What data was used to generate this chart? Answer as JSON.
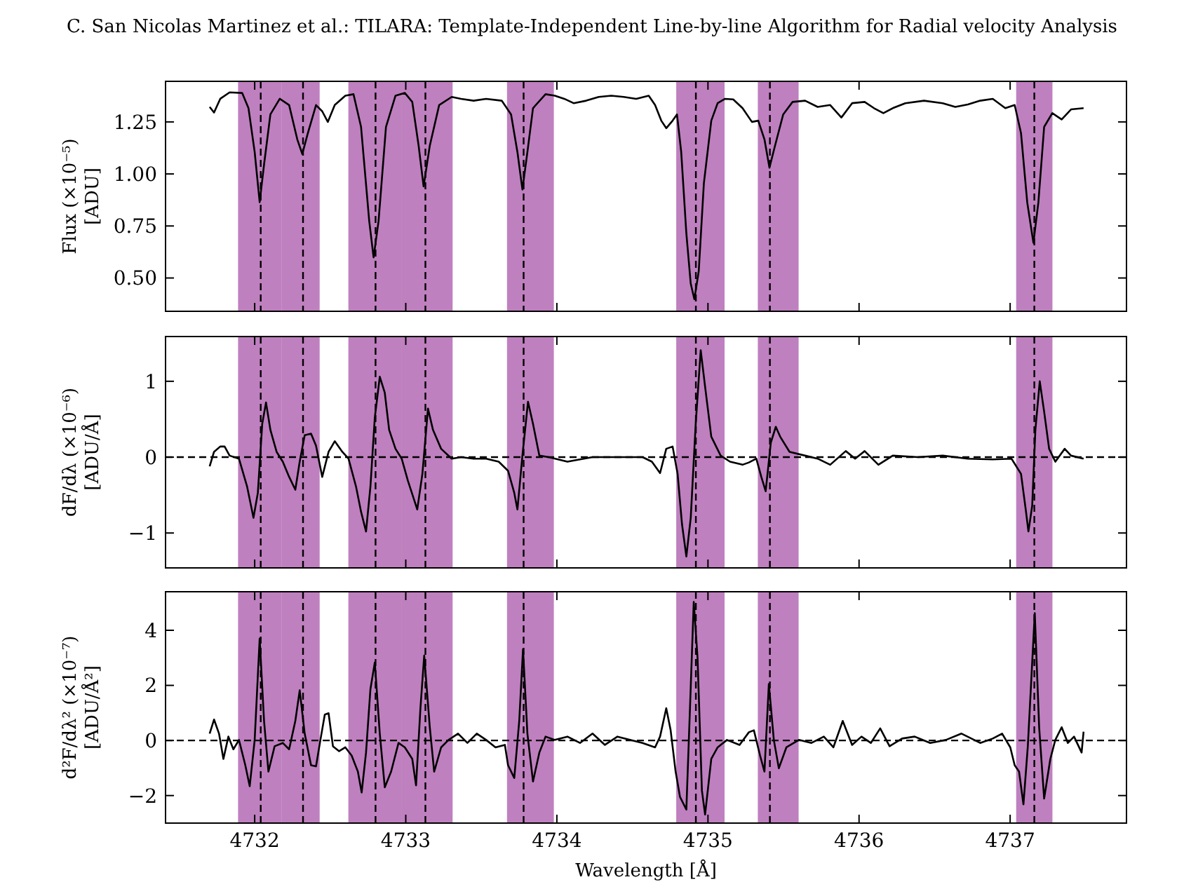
{
  "chart_data": [
    {
      "type": "line",
      "title": "C. San Nicolas Martinez et al.: TILARA: Template-Independent Line-by-line Algorithm for Radial velocity Analysis",
      "ylabel": "Flux (×10⁻⁵)\n[ADU]",
      "xlim": [
        4731.41,
        4737.77
      ],
      "ylim": [
        0.34,
        1.445
      ],
      "xticks": [
        4732,
        4733,
        4734,
        4735,
        4736,
        4737
      ],
      "yticks": [
        {
          "value": 0.5,
          "label": "0.50"
        },
        {
          "value": 0.75,
          "label": "0.75"
        },
        {
          "value": 1.0,
          "label": "1.00"
        },
        {
          "value": 1.25,
          "label": "1.25"
        }
      ],
      "tick_labels": "y",
      "grid": false,
      "series": [
        {
          "color": "#000000",
          "x": [
            4731.702,
            4731.731,
            4731.772,
            4731.834,
            4731.917,
            4731.959,
            4732.0,
            4732.033,
            4732.062,
            4732.104,
            4732.166,
            4732.228,
            4732.282,
            4732.315,
            4732.352,
            4732.406,
            4732.447,
            4732.484,
            4732.53,
            4732.6,
            4732.654,
            4732.704,
            4732.758,
            4732.787,
            4732.82,
            4732.869,
            4732.932,
            4732.994,
            4733.043,
            4733.085,
            4733.118,
            4733.159,
            4733.221,
            4733.304,
            4733.366,
            4733.449,
            4733.532,
            4733.635,
            4733.697,
            4733.739,
            4733.772,
            4733.805,
            4733.842,
            4733.925,
            4733.987,
            4734.049,
            4734.111,
            4734.194,
            4734.277,
            4734.36,
            4734.443,
            4734.525,
            4734.608,
            4734.65,
            4734.691,
            4734.724,
            4734.766,
            4734.795,
            4734.823,
            4734.857,
            4734.886,
            4734.91,
            4734.939,
            4734.973,
            4735.022,
            4735.064,
            4735.113,
            4735.167,
            4735.229,
            4735.291,
            4735.333,
            4735.374,
            4735.407,
            4735.444,
            4735.498,
            4735.56,
            4735.643,
            4735.726,
            4735.809,
            4735.883,
            4735.954,
            4736.037,
            4736.099,
            4736.161,
            4736.223,
            4736.306,
            4736.43,
            4736.554,
            4736.637,
            4736.72,
            4736.802,
            4736.885,
            4736.968,
            4737.03,
            4737.072,
            4737.113,
            4737.154,
            4737.187,
            4737.225,
            4737.279,
            4737.341,
            4737.403,
            4737.486
          ],
          "values": [
            1.322,
            1.295,
            1.361,
            1.392,
            1.389,
            1.316,
            1.105,
            0.864,
            1.045,
            1.286,
            1.361,
            1.331,
            1.166,
            1.096,
            1.196,
            1.331,
            1.301,
            1.25,
            1.331,
            1.376,
            1.383,
            1.226,
            0.774,
            0.599,
            0.774,
            1.226,
            1.376,
            1.389,
            1.346,
            1.136,
            0.94,
            1.136,
            1.331,
            1.37,
            1.361,
            1.352,
            1.361,
            1.352,
            1.286,
            1.105,
            0.925,
            1.105,
            1.316,
            1.383,
            1.376,
            1.361,
            1.34,
            1.352,
            1.37,
            1.376,
            1.37,
            1.361,
            1.376,
            1.331,
            1.256,
            1.22,
            1.256,
            1.286,
            1.105,
            0.714,
            0.473,
            0.398,
            0.533,
            0.955,
            1.256,
            1.34,
            1.361,
            1.358,
            1.316,
            1.25,
            1.256,
            1.166,
            1.03,
            1.136,
            1.286,
            1.346,
            1.352,
            1.322,
            1.331,
            1.271,
            1.34,
            1.346,
            1.316,
            1.292,
            1.316,
            1.34,
            1.352,
            1.34,
            1.322,
            1.334,
            1.352,
            1.361,
            1.316,
            1.331,
            1.196,
            0.864,
            0.669,
            0.864,
            1.226,
            1.292,
            1.262,
            1.31,
            1.316
          ]
        }
      ],
      "ref_lines": [
        {
          "axis": "x",
          "value": 4732.04,
          "color": "#000000",
          "line_style": "dashed"
        },
        {
          "axis": "x",
          "value": 4732.32,
          "color": "#000000",
          "line_style": "dashed"
        },
        {
          "axis": "x",
          "value": 4732.8,
          "color": "#000000",
          "line_style": "dashed"
        },
        {
          "axis": "x",
          "value": 4733.13,
          "color": "#000000",
          "line_style": "dashed"
        },
        {
          "axis": "x",
          "value": 4733.78,
          "color": "#000000",
          "line_style": "dashed"
        },
        {
          "axis": "x",
          "value": 4734.92,
          "color": "#000000",
          "line_style": "dashed"
        },
        {
          "axis": "x",
          "value": 4735.41,
          "color": "#000000",
          "line_style": "dashed"
        },
        {
          "axis": "x",
          "value": 4737.16,
          "color": "#000000",
          "line_style": "dashed"
        }
      ],
      "bands": [
        {
          "axis": "x",
          "from": 4731.89,
          "to": 4732.18,
          "color": "#bf80bf"
        },
        {
          "axis": "x",
          "from": 4732.18,
          "to": 4732.43,
          "color": "#bf80bf"
        },
        {
          "axis": "x",
          "from": 4732.62,
          "to": 4732.97,
          "color": "#bf80bf"
        },
        {
          "axis": "x",
          "from": 4732.97,
          "to": 4733.31,
          "color": "#bf80bf"
        },
        {
          "axis": "x",
          "from": 4733.67,
          "to": 4733.98,
          "color": "#bf80bf"
        },
        {
          "axis": "x",
          "from": 4734.79,
          "to": 4735.11,
          "color": "#bf80bf"
        },
        {
          "axis": "x",
          "from": 4735.33,
          "to": 4735.6,
          "color": "#bf80bf"
        },
        {
          "axis": "x",
          "from": 4737.04,
          "to": 4737.28,
          "color": "#bf80bf"
        }
      ]
    },
    {
      "type": "line",
      "ylabel": "dF/dλ (×10⁻⁶)\n[ADU/Å]",
      "xlim": [
        4731.41,
        4737.77
      ],
      "ylim": [
        -1.46,
        1.59
      ],
      "xticks": [
        4732,
        4733,
        4734,
        4735,
        4736,
        4737
      ],
      "yticks": [
        {
          "value": -1,
          "label": "−1"
        },
        0,
        1
      ],
      "tick_labels": "y",
      "grid": false,
      "series": [
        {
          "color": "#000000",
          "x": [
            4731.702,
            4731.731,
            4731.772,
            4731.801,
            4731.834,
            4731.896,
            4731.95,
            4731.992,
            4732.021,
            4732.05,
            4732.075,
            4732.104,
            4732.145,
            4732.186,
            4732.228,
            4732.269,
            4732.298,
            4732.331,
            4732.373,
            4732.406,
            4732.447,
            4732.489,
            4732.53,
            4732.58,
            4732.621,
            4732.671,
            4732.704,
            4732.737,
            4732.766,
            4732.795,
            4732.828,
            4732.861,
            4732.89,
            4732.932,
            4732.973,
            4733.014,
            4733.076,
            4733.11,
            4733.147,
            4733.18,
            4733.234,
            4733.304,
            4733.366,
            4733.449,
            4733.532,
            4733.615,
            4733.677,
            4733.718,
            4733.739,
            4733.772,
            4733.809,
            4733.842,
            4733.884,
            4733.946,
            4734.07,
            4734.236,
            4734.401,
            4734.567,
            4734.629,
            4734.683,
            4734.724,
            4734.766,
            4734.799,
            4734.828,
            4734.857,
            4734.886,
            4734.919,
            4734.952,
            4734.981,
            4735.022,
            4735.084,
            4735.146,
            4735.229,
            4735.271,
            4735.32,
            4735.353,
            4735.382,
            4735.416,
            4735.449,
            4735.478,
            4735.54,
            4735.643,
            4735.726,
            4735.809,
            4735.912,
            4735.974,
            4736.037,
            4736.128,
            4736.223,
            4736.389,
            4736.554,
            4736.72,
            4736.885,
            4737.009,
            4737.072,
            4737.105,
            4737.121,
            4737.146,
            4737.167,
            4737.196,
            4737.225,
            4737.258,
            4737.299,
            4737.361,
            4737.403,
            4737.486
          ],
          "values": [
            -0.12,
            0.07,
            0.14,
            0.14,
            0.02,
            -0.02,
            -0.39,
            -0.8,
            -0.47,
            0.44,
            0.72,
            0.36,
            0.07,
            -0.06,
            -0.26,
            -0.43,
            -0.06,
            0.29,
            0.31,
            0.15,
            -0.26,
            0.07,
            0.21,
            0.07,
            -0.02,
            -0.39,
            -0.72,
            -0.98,
            -0.39,
            0.52,
            1.06,
            0.85,
            0.36,
            0.11,
            -0.02,
            -0.31,
            -0.69,
            -0.22,
            0.64,
            0.36,
            0.11,
            -0.02,
            0,
            -0.02,
            -0.02,
            -0.06,
            -0.18,
            -0.47,
            -0.69,
            0.02,
            0.73,
            0.44,
            0.02,
            0,
            -0.06,
            0,
            0,
            0,
            -0.06,
            -0.21,
            0.11,
            0.14,
            -0.22,
            -0.88,
            -1.31,
            -0.8,
            0.44,
            1.41,
            0.93,
            0.27,
            0.02,
            -0.06,
            -0.1,
            -0.07,
            -0.02,
            -0.26,
            -0.45,
            0.19,
            0.4,
            0.27,
            0.07,
            0.02,
            -0.02,
            -0.1,
            0.08,
            -0.02,
            0.08,
            -0.1,
            0.02,
            0,
            0.02,
            -0.02,
            -0.03,
            -0.02,
            -0.22,
            -0.72,
            -0.98,
            -0.64,
            0.36,
            1.0,
            0.6,
            0.11,
            -0.06,
            0.11,
            0.02,
            -0.02
          ]
        }
      ],
      "ref_lines": [
        {
          "axis": "y",
          "value": 0,
          "color": "#000000",
          "line_style": "dashed"
        },
        {
          "axis": "x",
          "value": 4732.04,
          "color": "#000000",
          "line_style": "dashed"
        },
        {
          "axis": "x",
          "value": 4732.32,
          "color": "#000000",
          "line_style": "dashed"
        },
        {
          "axis": "x",
          "value": 4732.8,
          "color": "#000000",
          "line_style": "dashed"
        },
        {
          "axis": "x",
          "value": 4733.13,
          "color": "#000000",
          "line_style": "dashed"
        },
        {
          "axis": "x",
          "value": 4733.78,
          "color": "#000000",
          "line_style": "dashed"
        },
        {
          "axis": "x",
          "value": 4734.92,
          "color": "#000000",
          "line_style": "dashed"
        },
        {
          "axis": "x",
          "value": 4735.41,
          "color": "#000000",
          "line_style": "dashed"
        },
        {
          "axis": "x",
          "value": 4737.16,
          "color": "#000000",
          "line_style": "dashed"
        }
      ],
      "bands": [
        {
          "axis": "x",
          "from": 4731.89,
          "to": 4732.18,
          "color": "#bf80bf"
        },
        {
          "axis": "x",
          "from": 4732.18,
          "to": 4732.43,
          "color": "#bf80bf"
        },
        {
          "axis": "x",
          "from": 4732.62,
          "to": 4732.97,
          "color": "#bf80bf"
        },
        {
          "axis": "x",
          "from": 4732.97,
          "to": 4733.31,
          "color": "#bf80bf"
        },
        {
          "axis": "x",
          "from": 4733.67,
          "to": 4733.98,
          "color": "#bf80bf"
        },
        {
          "axis": "x",
          "from": 4734.79,
          "to": 4735.11,
          "color": "#bf80bf"
        },
        {
          "axis": "x",
          "from": 4735.33,
          "to": 4735.6,
          "color": "#bf80bf"
        },
        {
          "axis": "x",
          "from": 4737.04,
          "to": 4737.28,
          "color": "#bf80bf"
        }
      ]
    },
    {
      "type": "line",
      "xlabel": "Wavelength [Å]",
      "ylabel": "d²F/dλ² (×10⁻⁷)\n[ADU/Å²]",
      "xlim": [
        4731.41,
        4737.77
      ],
      "ylim": [
        -3.0,
        5.4
      ],
      "xticks": [
        4732,
        4733,
        4734,
        4735,
        4736,
        4737
      ],
      "yticks": [
        {
          "value": -2,
          "label": "−2"
        },
        0,
        2,
        4
      ],
      "grid": false,
      "series": [
        {
          "color": "#000000",
          "x": [
            4731.702,
            4731.731,
            4731.764,
            4731.793,
            4731.826,
            4731.859,
            4731.896,
            4731.938,
            4731.967,
            4732.0,
            4732.033,
            4732.062,
            4732.091,
            4732.132,
            4732.186,
            4732.228,
            4732.269,
            4732.298,
            4732.331,
            4732.373,
            4732.406,
            4732.435,
            4732.464,
            4732.489,
            4732.518,
            4732.559,
            4732.6,
            4732.642,
            4732.683,
            4732.708,
            4732.737,
            4732.766,
            4732.795,
            4732.828,
            4732.861,
            4732.903,
            4732.952,
            4732.994,
            4733.043,
            4733.068,
            4733.097,
            4733.122,
            4733.159,
            4733.188,
            4733.234,
            4733.283,
            4733.346,
            4733.408,
            4733.47,
            4733.532,
            4733.594,
            4733.656,
            4733.677,
            4733.718,
            4733.751,
            4733.776,
            4733.805,
            4733.842,
            4733.884,
            4733.925,
            4733.987,
            4734.07,
            4734.153,
            4734.236,
            4734.318,
            4734.401,
            4734.484,
            4734.567,
            4734.65,
            4734.683,
            4734.724,
            4734.753,
            4734.786,
            4734.815,
            4734.857,
            4734.881,
            4734.906,
            4734.931,
            4734.96,
            4734.981,
            4735.022,
            4735.064,
            4735.126,
            4735.209,
            4735.271,
            4735.304,
            4735.345,
            4735.374,
            4735.403,
            4735.436,
            4735.469,
            4735.519,
            4735.602,
            4735.685,
            4735.767,
            4735.83,
            4735.892,
            4735.954,
            4736.016,
            4736.078,
            4736.14,
            4736.202,
            4736.285,
            4736.368,
            4736.471,
            4736.575,
            4736.678,
            4736.802,
            4736.885,
            4736.947,
            4737.001,
            4737.03,
            4737.059,
            4737.088,
            4737.117,
            4737.163,
            4737.192,
            4737.225,
            4737.266,
            4737.299,
            4737.341,
            4737.382,
            4737.423,
            4737.473,
            4737.486
          ],
          "values": [
            0.25,
            0.76,
            0.25,
            -0.67,
            0.14,
            -0.32,
            0.02,
            -0.9,
            -1.66,
            0.02,
            3.7,
            0.71,
            -1.13,
            -0.21,
            -0.09,
            -0.32,
            0.71,
            1.82,
            0.25,
            -0.9,
            -0.94,
            0.02,
            0.94,
            0.99,
            -0.21,
            -0.39,
            -0.25,
            -0.55,
            -1.13,
            -1.89,
            -0.44,
            1.86,
            2.83,
            0.25,
            -1.7,
            -1.13,
            -0.09,
            -0.25,
            -0.67,
            -1.63,
            1.17,
            3.08,
            0.48,
            -1.13,
            -0.25,
            0.02,
            0.25,
            -0.09,
            0.25,
            0.02,
            -0.25,
            -0.16,
            -0.9,
            -1.36,
            0.71,
            3.31,
            0.25,
            -1.49,
            -0.44,
            0.14,
            0.02,
            0.14,
            -0.09,
            0.25,
            -0.16,
            0.14,
            0.02,
            -0.09,
            -0.25,
            0.14,
            1.17,
            0.37,
            -1.13,
            -2.05,
            -2.51,
            1.17,
            5.03,
            3.01,
            -1.82,
            -2.69,
            -0.67,
            -0.25,
            0.02,
            -0.16,
            0.3,
            0.37,
            -0.55,
            -1.13,
            2.05,
            0.02,
            -1.01,
            -0.25,
            0.02,
            -0.09,
            0.14,
            -0.25,
            0.71,
            -0.16,
            0.14,
            -0.09,
            0.44,
            -0.21,
            0.07,
            0.14,
            -0.09,
            0.02,
            0.25,
            -0.09,
            0.07,
            0.25,
            -0.25,
            -0.9,
            -1.13,
            -2.32,
            -0.21,
            4.62,
            0.48,
            -2.11,
            -0.67,
            0.02,
            0.48,
            -0.09,
            0.14,
            -0.44,
            0.32
          ]
        }
      ],
      "ref_lines": [
        {
          "axis": "y",
          "value": 0,
          "color": "#000000",
          "line_style": "dashed"
        },
        {
          "axis": "x",
          "value": 4732.04,
          "color": "#000000",
          "line_style": "dashed"
        },
        {
          "axis": "x",
          "value": 4732.32,
          "color": "#000000",
          "line_style": "dashed"
        },
        {
          "axis": "x",
          "value": 4732.8,
          "color": "#000000",
          "line_style": "dashed"
        },
        {
          "axis": "x",
          "value": 4733.13,
          "color": "#000000",
          "line_style": "dashed"
        },
        {
          "axis": "x",
          "value": 4733.78,
          "color": "#000000",
          "line_style": "dashed"
        },
        {
          "axis": "x",
          "value": 4734.92,
          "color": "#000000",
          "line_style": "dashed"
        },
        {
          "axis": "x",
          "value": 4735.41,
          "color": "#000000",
          "line_style": "dashed"
        },
        {
          "axis": "x",
          "value": 4737.16,
          "color": "#000000",
          "line_style": "dashed"
        }
      ],
      "bands": [
        {
          "axis": "x",
          "from": 4731.89,
          "to": 4732.18,
          "color": "#bf80bf"
        },
        {
          "axis": "x",
          "from": 4732.18,
          "to": 4732.43,
          "color": "#bf80bf"
        },
        {
          "axis": "x",
          "from": 4732.62,
          "to": 4732.97,
          "color": "#bf80bf"
        },
        {
          "axis": "x",
          "from": 4732.97,
          "to": 4733.31,
          "color": "#bf80bf"
        },
        {
          "axis": "x",
          "from": 4733.67,
          "to": 4733.98,
          "color": "#bf80bf"
        },
        {
          "axis": "x",
          "from": 4734.79,
          "to": 4735.11,
          "color": "#bf80bf"
        },
        {
          "axis": "x",
          "from": 4735.33,
          "to": 4735.6,
          "color": "#bf80bf"
        },
        {
          "axis": "x",
          "from": 4737.04,
          "to": 4737.28,
          "color": "#bf80bf"
        }
      ]
    }
  ]
}
